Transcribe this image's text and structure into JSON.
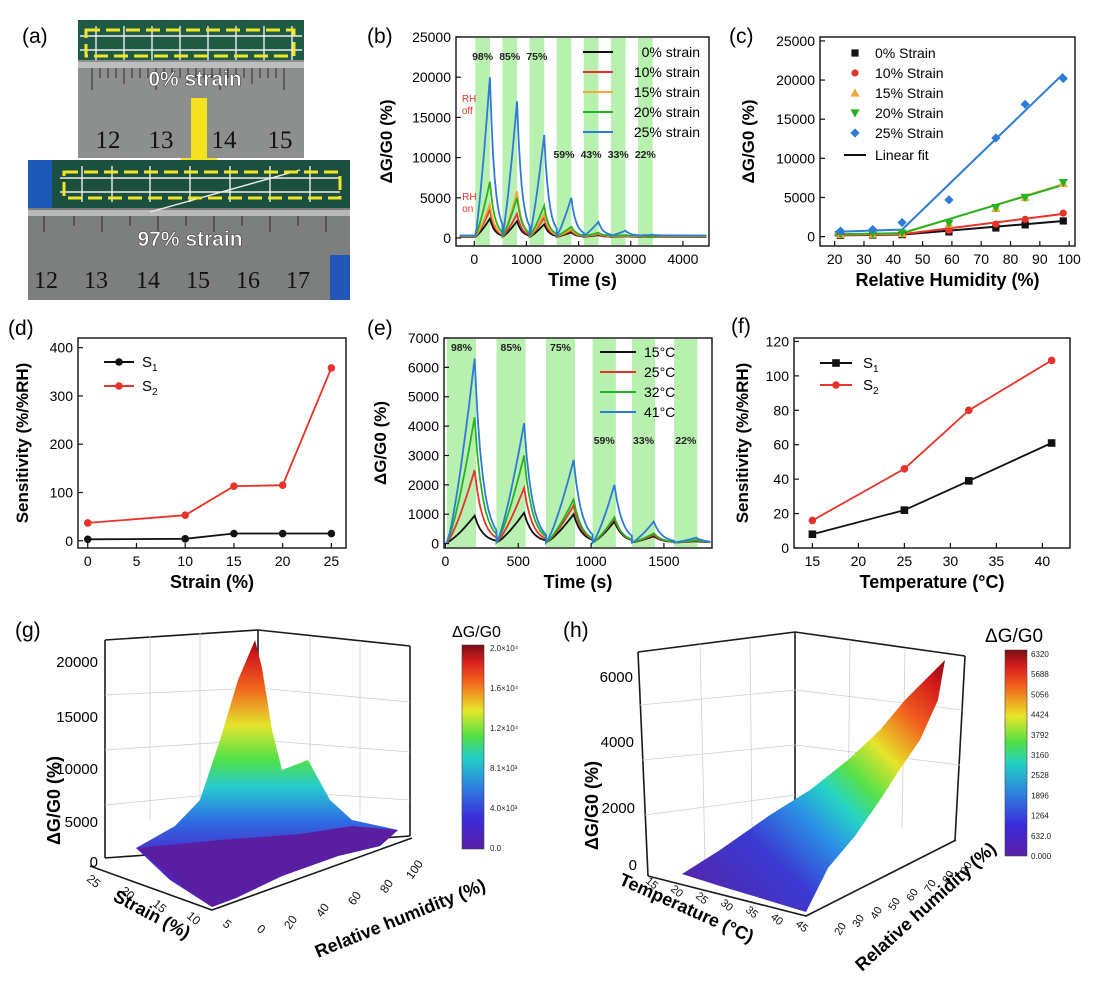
{
  "panels": {
    "a": {
      "label": "(a)",
      "top_text": "0% strain",
      "bottom_text": "97% strain",
      "ruler_top": [
        "12",
        "13",
        "14",
        "15"
      ],
      "ruler_bottom": [
        "12",
        "13",
        "14",
        "15",
        "16",
        "17"
      ]
    },
    "b": {
      "label": "(b)"
    },
    "c": {
      "label": "(c)"
    },
    "d": {
      "label": "(d)"
    },
    "e": {
      "label": "(e)"
    },
    "f": {
      "label": "(f)"
    },
    "g": {
      "label": "(g)"
    },
    "h": {
      "label": "(h)"
    }
  },
  "colors": {
    "black": "#111111",
    "red": "#e8332a",
    "orange": "#f2a93b",
    "green": "#27b224",
    "blue": "#2c7bd6",
    "band": "#b8f0b0"
  },
  "chart_data": [
    {
      "id": "b",
      "type": "line",
      "xlabel": "Time (s)",
      "ylabel": "ΔG/G0 (%)",
      "xlim": [
        -350,
        4500
      ],
      "ylim": [
        -1000,
        25000
      ],
      "xticks": [
        0,
        1000,
        2000,
        3000,
        4000
      ],
      "yticks": [
        0,
        5000,
        10000,
        15000,
        20000,
        25000
      ],
      "bands": [
        {
          "x0": 20,
          "x1": 300,
          "label": "98%"
        },
        {
          "x0": 540,
          "x1": 820,
          "label": "85%"
        },
        {
          "x0": 1060,
          "x1": 1340,
          "label": "75%"
        },
        {
          "x0": 1580,
          "x1": 1860,
          "label": "59%"
        },
        {
          "x0": 2100,
          "x1": 2380,
          "label": "43%"
        },
        {
          "x0": 2620,
          "x1": 2900,
          "label": "33%"
        },
        {
          "x0": 3140,
          "x1": 3420,
          "label": "22%"
        }
      ],
      "annotations": [
        {
          "text": "RH off",
          "x": 30,
          "y": 20000
        },
        {
          "text": "RH on",
          "x": -40,
          "y": 600
        }
      ],
      "pulse": {
        "rise": 280,
        "period": 520,
        "tau": 90,
        "start": 20
      },
      "series": [
        {
          "name": "0% strain",
          "color": "#111111",
          "peaks": [
            2400,
            2100,
            1700,
            700,
            350,
            200,
            100
          ]
        },
        {
          "name": "10% strain",
          "color": "#e8332a",
          "peaks": [
            3500,
            3000,
            2500,
            900,
            450,
            250,
            120
          ]
        },
        {
          "name": "15% strain",
          "color": "#f2a93b",
          "peaks": [
            4200,
            5800,
            3000,
            1100,
            550,
            300,
            150
          ]
        },
        {
          "name": "20% strain",
          "color": "#27b224",
          "peaks": [
            7000,
            5000,
            4000,
            1400,
            650,
            350,
            180
          ]
        },
        {
          "name": "25% strain",
          "color": "#2c7bd6",
          "peaks": [
            20000,
            17000,
            12800,
            5000,
            2000,
            900,
            400
          ]
        }
      ]
    },
    {
      "id": "c",
      "type": "scatter",
      "xlabel": "Relative Humidity (%)",
      "ylabel": "ΔG/G0 (%)",
      "xlim": [
        15,
        102
      ],
      "ylim": [
        -1200,
        25500
      ],
      "xticks": [
        20,
        30,
        40,
        50,
        60,
        70,
        80,
        90,
        100
      ],
      "yticks": [
        0,
        5000,
        10000,
        15000,
        20000,
        25000
      ],
      "x": [
        22,
        33,
        43,
        59,
        75,
        85,
        98
      ],
      "series": [
        {
          "name": "0% Strain",
          "color": "#111111",
          "marker": "square",
          "values": [
            150,
            200,
            250,
            600,
            1100,
            1500,
            2000
          ],
          "fit": [
            [
              20,
              150
            ],
            [
              43,
              250
            ],
            [
              98,
              2000
            ]
          ]
        },
        {
          "name": "10% Strain",
          "color": "#e8332a",
          "marker": "circle",
          "values": [
            200,
            250,
            300,
            800,
            1600,
            2200,
            3000
          ],
          "fit": [
            [
              20,
              200
            ],
            [
              43,
              300
            ],
            [
              98,
              2900
            ]
          ]
        },
        {
          "name": "15% Strain",
          "color": "#f2a93b",
          "marker": "triangle",
          "values": [
            250,
            300,
            400,
            1600,
            3600,
            5000,
            6800
          ],
          "fit": [
            [
              20,
              250
            ],
            [
              43,
              400
            ],
            [
              98,
              6700
            ]
          ]
        },
        {
          "name": "20% Strain",
          "color": "#27b224",
          "marker": "triangle-down",
          "values": [
            300,
            350,
            450,
            1700,
            3700,
            5000,
            6900
          ],
          "fit": [
            [
              20,
              300
            ],
            [
              43,
              450
            ],
            [
              98,
              6600
            ]
          ]
        },
        {
          "name": "25% Strain",
          "color": "#2c7bd6",
          "marker": "diamond",
          "values": [
            700,
            900,
            1800,
            4700,
            12600,
            16900,
            20200
          ],
          "fit": [
            [
              20,
              600
            ],
            [
              43,
              900
            ],
            [
              98,
              20800
            ]
          ]
        }
      ],
      "fit_label": "Linear fit"
    },
    {
      "id": "d",
      "type": "line",
      "xlabel": "Strain (%)",
      "ylabel": "Sensitivity (%/%RH)",
      "xlim": [
        -1,
        26.5
      ],
      "ylim": [
        -15,
        420
      ],
      "xticks": [
        0,
        5,
        10,
        15,
        20,
        25
      ],
      "yticks": [
        0,
        100,
        200,
        300,
        400
      ],
      "x": [
        0,
        10,
        15,
        20,
        25
      ],
      "series": [
        {
          "name": "S1",
          "color": "#111111",
          "values": [
            3,
            4,
            15,
            15,
            15
          ]
        },
        {
          "name": "S2",
          "color": "#e8332a",
          "values": [
            37,
            53,
            113,
            115,
            358
          ]
        }
      ]
    },
    {
      "id": "e",
      "type": "line",
      "xlabel": "Time (s)",
      "ylabel": "ΔG/G0 (%)",
      "xlim": [
        -10,
        1830
      ],
      "ylim": [
        -150,
        7000
      ],
      "xticks": [
        0,
        500,
        1000,
        1500
      ],
      "yticks": [
        0,
        1000,
        2000,
        3000,
        4000,
        5000,
        6000,
        7000
      ],
      "bands": [
        {
          "x0": 10,
          "x1": 210,
          "label": "98%"
        },
        {
          "x0": 350,
          "x1": 550,
          "label": "85%"
        },
        {
          "x0": 690,
          "x1": 890,
          "label": "75%"
        },
        {
          "x0": 1010,
          "x1": 1170,
          "label": "59%"
        },
        {
          "x0": 1280,
          "x1": 1440,
          "label": "33%"
        },
        {
          "x0": 1570,
          "x1": 1730,
          "label": "22%"
        }
      ],
      "pulse_times": [
        [
          10,
          200
        ],
        [
          350,
          540
        ],
        [
          690,
          880
        ],
        [
          1010,
          1160
        ],
        [
          1280,
          1430
        ],
        [
          1570,
          1720
        ]
      ],
      "tau": 55,
      "series": [
        {
          "name": "15°C",
          "color": "#111111",
          "peaks": [
            950,
            1050,
            1000,
            750,
            250,
            80
          ]
        },
        {
          "name": "25°C",
          "color": "#e8332a",
          "peaks": [
            2500,
            1900,
            1300,
            850,
            300,
            100
          ]
        },
        {
          "name": "32°C",
          "color": "#27b224",
          "peaks": [
            4300,
            3000,
            1500,
            900,
            350,
            120
          ]
        },
        {
          "name": "41°C",
          "color": "#2c7bd6",
          "peaks": [
            6300,
            4100,
            2850,
            2000,
            750,
            200
          ]
        }
      ]
    },
    {
      "id": "f",
      "type": "line",
      "xlabel": "Temperature (°C)",
      "ylabel": "Sensitivity (%/%RH)",
      "xlim": [
        13,
        43
      ],
      "ylim": [
        0,
        122
      ],
      "xticks": [
        15,
        20,
        25,
        30,
        35,
        40
      ],
      "yticks": [
        0,
        20,
        40,
        60,
        80,
        100,
        120
      ],
      "x": [
        15,
        25,
        32,
        41
      ],
      "series": [
        {
          "name": "S1",
          "color": "#111111",
          "values": [
            8,
            22,
            39,
            61
          ]
        },
        {
          "name": "S2",
          "color": "#e8332a",
          "values": [
            16,
            46,
            80,
            109
          ]
        }
      ]
    },
    {
      "id": "g",
      "type": "surface",
      "zlabel": "ΔG/G0 (%)",
      "xlabel": "Strain (%)",
      "ylabel": "Relative humidity (%)",
      "zticks": [
        0,
        5000,
        10000,
        15000,
        20000
      ],
      "strain_ticks": [
        "25",
        "20",
        "15",
        "10",
        "5",
        "0"
      ],
      "rh_ticks": [
        "20",
        "40",
        "60",
        "80",
        "100"
      ],
      "colorbar": {
        "title": "ΔG/G0",
        "ticks": [
          "2.0×10⁴",
          "1.6×10⁴",
          "1.2×10⁴",
          "8.1×10³",
          "4.0×10³",
          "0.0"
        ]
      }
    },
    {
      "id": "h",
      "type": "surface",
      "zlabel": "ΔG/G0 (%)",
      "xlabel": "Temperature (°C)",
      "ylabel": "Relative humidity (%)",
      "zticks": [
        0,
        2000,
        4000,
        6000
      ],
      "temp_ticks": [
        "15",
        "20",
        "25",
        "30",
        "35",
        "40",
        "45"
      ],
      "rh_ticks": [
        "20",
        "30",
        "40",
        "50",
        "60",
        "70",
        "80",
        "90"
      ],
      "colorbar": {
        "title": "ΔG/G0",
        "ticks": [
          "6320",
          "5688",
          "5056",
          "4424",
          "3792",
          "3160",
          "2528",
          "1896",
          "1264",
          "632.0",
          "0.000"
        ]
      }
    }
  ]
}
